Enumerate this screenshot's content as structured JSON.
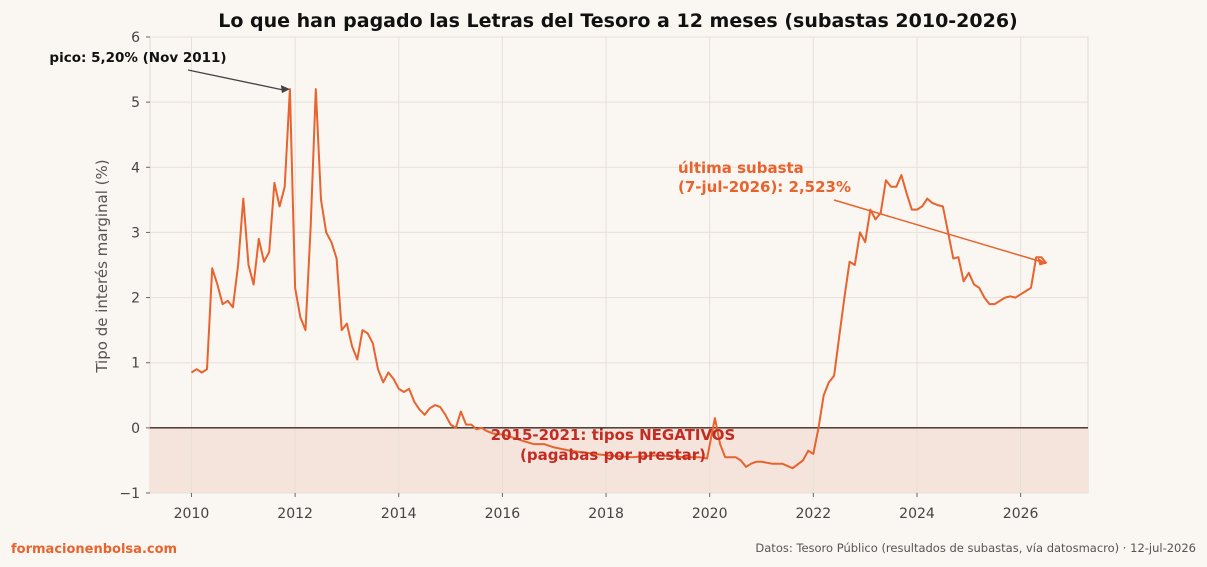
{
  "chart_data": {
    "type": "line",
    "title": "Lo que han pagado las Letras del Tesoro a 12 meses (subastas 2010-2026)",
    "xlabel": "",
    "ylabel": "Tipo de interés marginal (%)",
    "xlim": [
      2009.2,
      2027.3
    ],
    "ylim": [
      -1,
      6
    ],
    "xticks": [
      2010,
      2012,
      2014,
      2016,
      2018,
      2020,
      2022,
      2024,
      2026
    ],
    "yticks": [
      -1,
      0,
      1,
      2,
      3,
      4,
      5,
      6
    ],
    "ytick_labels": [
      "−1",
      "0",
      "1",
      "2",
      "3",
      "4",
      "5",
      "6"
    ],
    "grid": true,
    "line_color": "#e8632e",
    "negative_band_color": "#f5e4dc",
    "series": [
      {
        "x": [
          2010.0,
          2010.1,
          2010.2,
          2010.3,
          2010.4,
          2010.5,
          2010.6,
          2010.7,
          2010.8,
          2010.9,
          2011.0,
          2011.1,
          2011.2,
          2011.3,
          2011.4,
          2011.5,
          2011.6,
          2011.7,
          2011.8,
          2011.9,
          2012.0,
          2012.1,
          2012.2,
          2012.3,
          2012.4,
          2012.5,
          2012.6,
          2012.7,
          2012.8,
          2012.9,
          2013.0,
          2013.1,
          2013.2,
          2013.3,
          2013.4,
          2013.5,
          2013.6,
          2013.7,
          2013.8,
          2013.9,
          2014.0,
          2014.1,
          2014.2,
          2014.3,
          2014.4,
          2014.5,
          2014.6,
          2014.7,
          2014.8,
          2014.9,
          2015.0,
          2015.1,
          2015.2,
          2015.3,
          2015.4,
          2015.5,
          2015.6,
          2015.7,
          2015.8,
          2015.9,
          2016.0,
          2016.2,
          2016.4,
          2016.6,
          2016.8,
          2017.0,
          2017.3,
          2017.6,
          2018.0,
          2018.5,
          2019.0,
          2019.5,
          2019.8,
          2019.95,
          2020.1,
          2020.2,
          2020.3,
          2020.4,
          2020.5,
          2020.6,
          2020.7,
          2020.8,
          2020.9,
          2021.0,
          2021.2,
          2021.4,
          2021.6,
          2021.8,
          2021.9,
          2022.0,
          2022.1,
          2022.2,
          2022.3,
          2022.4,
          2022.5,
          2022.6,
          2022.7,
          2022.8,
          2022.9,
          2023.0,
          2023.1,
          2023.2,
          2023.3,
          2023.4,
          2023.5,
          2023.6,
          2023.7,
          2023.8,
          2023.9,
          2024.0,
          2024.1,
          2024.2,
          2024.3,
          2024.4,
          2024.5,
          2024.6,
          2024.7,
          2024.8,
          2024.9,
          2025.0,
          2025.1,
          2025.2,
          2025.3,
          2025.4,
          2025.5,
          2025.6,
          2025.7,
          2025.8,
          2025.9,
          2026.0,
          2026.1,
          2026.2,
          2026.3,
          2026.4,
          2026.5
        ],
        "values": [
          0.85,
          0.9,
          0.85,
          0.9,
          2.45,
          2.2,
          1.9,
          1.95,
          1.85,
          2.5,
          3.52,
          2.5,
          2.2,
          2.9,
          2.55,
          2.7,
          3.76,
          3.4,
          3.7,
          5.2,
          2.15,
          1.7,
          1.5,
          3.1,
          5.2,
          3.5,
          3.0,
          2.85,
          2.6,
          1.5,
          1.6,
          1.25,
          1.05,
          1.5,
          1.45,
          1.3,
          0.9,
          0.7,
          0.85,
          0.75,
          0.6,
          0.55,
          0.6,
          0.4,
          0.28,
          0.2,
          0.3,
          0.35,
          0.32,
          0.2,
          0.05,
          0.0,
          0.25,
          0.05,
          0.05,
          -0.02,
          0.0,
          -0.05,
          -0.08,
          -0.1,
          -0.1,
          -0.15,
          -0.2,
          -0.25,
          -0.25,
          -0.3,
          -0.35,
          -0.38,
          -0.42,
          -0.45,
          -0.42,
          -0.45,
          -0.45,
          -0.47,
          0.15,
          -0.25,
          -0.45,
          -0.45,
          -0.45,
          -0.5,
          -0.6,
          -0.55,
          -0.52,
          -0.52,
          -0.55,
          -0.55,
          -0.62,
          -0.5,
          -0.35,
          -0.4,
          0.0,
          0.5,
          0.7,
          0.8,
          1.4,
          2.0,
          2.55,
          2.5,
          3.0,
          2.85,
          3.35,
          3.2,
          3.3,
          3.8,
          3.7,
          3.7,
          3.88,
          3.6,
          3.35,
          3.35,
          3.4,
          3.52,
          3.45,
          3.42,
          3.4,
          3.0,
          2.6,
          2.62,
          2.25,
          2.38,
          2.2,
          2.15,
          2.0,
          1.9,
          1.9,
          1.95,
          2.0,
          2.02,
          2.0,
          2.05,
          2.1,
          2.15,
          2.62,
          2.62,
          2.523
        ]
      }
    ],
    "annotations": {
      "peak_label": "pico: 5,20% (Nov 2011)",
      "last_line1": "última subasta",
      "last_line2": "(7-jul-2026): 2,523%",
      "negative_line1": "2015-2021: tipos NEGATIVOS",
      "negative_line2": "(pagabas por prestar)"
    }
  },
  "footer": {
    "brand": "formacionenbolsa.com",
    "source": "Datos: Tesoro Público (resultados de subastas, vía datosmacro) · 12-jul-2026"
  }
}
